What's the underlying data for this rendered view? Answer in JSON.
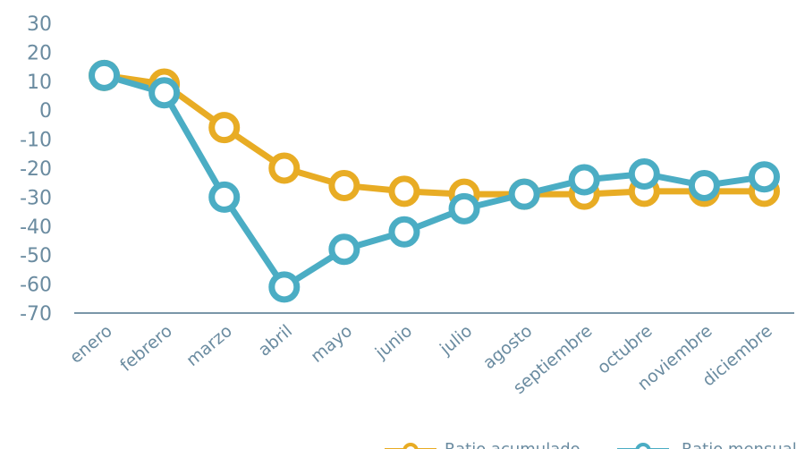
{
  "chart_data": {
    "type": "line",
    "categories": [
      "enero",
      "febrero",
      "marzo",
      "abril",
      "mayo",
      "junio",
      "julio",
      "agosto",
      "septiembre",
      "octubre",
      "noviembre",
      "diciembre"
    ],
    "series": [
      {
        "name": "Ratio acumulado",
        "color": "#E8AC24",
        "values": [
          12,
          9,
          -6,
          -20,
          -26,
          -28,
          -29,
          -29,
          -29,
          -28,
          -28,
          -28
        ]
      },
      {
        "name": "Ratio mensual",
        "color": "#4BADC4",
        "values": [
          12,
          6,
          -30,
          -61,
          -48,
          -42,
          -34,
          -29,
          -24,
          -22,
          -26,
          -23
        ]
      }
    ],
    "y_ticks": [
      "30",
      "20",
      "10",
      "0",
      "-10",
      "-20",
      "-30",
      "-40",
      "-50",
      "-60",
      "-70"
    ],
    "ylim": [
      -70,
      30
    ],
    "grid": false,
    "legend_position": "bottom",
    "title": "",
    "xlabel": "",
    "ylabel": "",
    "colors": {
      "axis": "#7A96A8",
      "label": "#6A8BA0"
    }
  }
}
